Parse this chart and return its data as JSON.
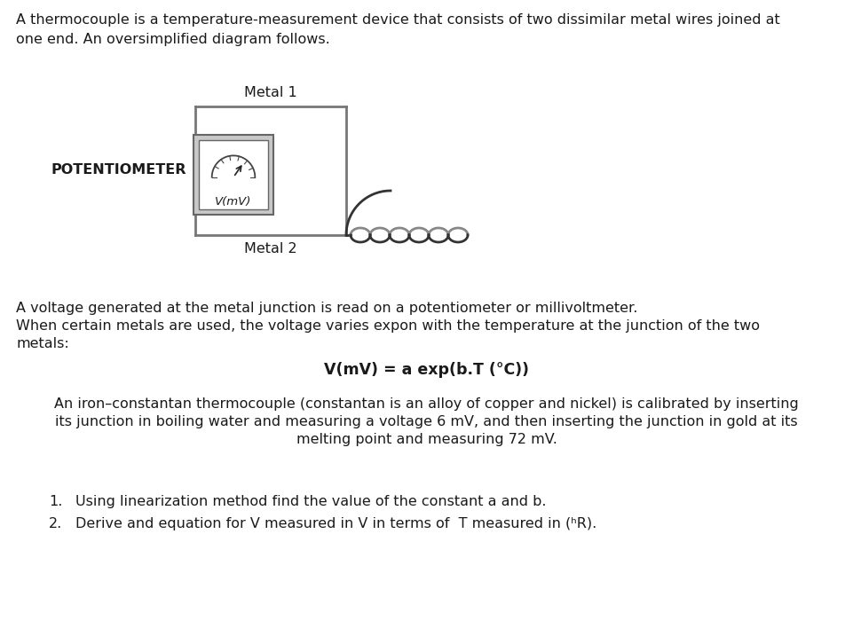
{
  "bg_color": "#ffffff",
  "text_color": "#1a1a1a",
  "gray_wire": "#888888",
  "dark_wire": "#333333",
  "gauge_face": "#c8c8c8",
  "gauge_border": "#666666",
  "title_text": "A thermocouple is a temperature-measurement device that consists of two dissimilar metal wires joined at\none end. An oversimplified diagram follows.",
  "para1_line1": "A voltage generated at the metal junction is read on a potentiometer or millivoltmeter.",
  "para1_line2": "When certain metals are used, the voltage varies expon with the temperature at the junction of the two",
  "para1_line3": "metals:",
  "formula": "V(mV) = a exp(b.T (°C))",
  "para2_line1": "An iron–constantan thermocouple (constantan is an alloy of copper and nickel) is calibrated by inserting",
  "para2_line2": "its junction in boiling water and measuring a voltage 6 mV, and then inserting the junction in gold at its",
  "para2_line3": "melting point and measuring 72 mV.",
  "q1": "Using linearization method find the value of the constant a and b.",
  "q2": "Derive and equation for V measured in V in terms of  T measured in (ʰR).",
  "metal1_label": "Metal 1",
  "metal2_label": "Metal 2",
  "potentiometer_label": "POTENTIOMETER",
  "vmv_label": "V(mV)",
  "font_size_main": 11.5,
  "font_size_formula": 12.5
}
